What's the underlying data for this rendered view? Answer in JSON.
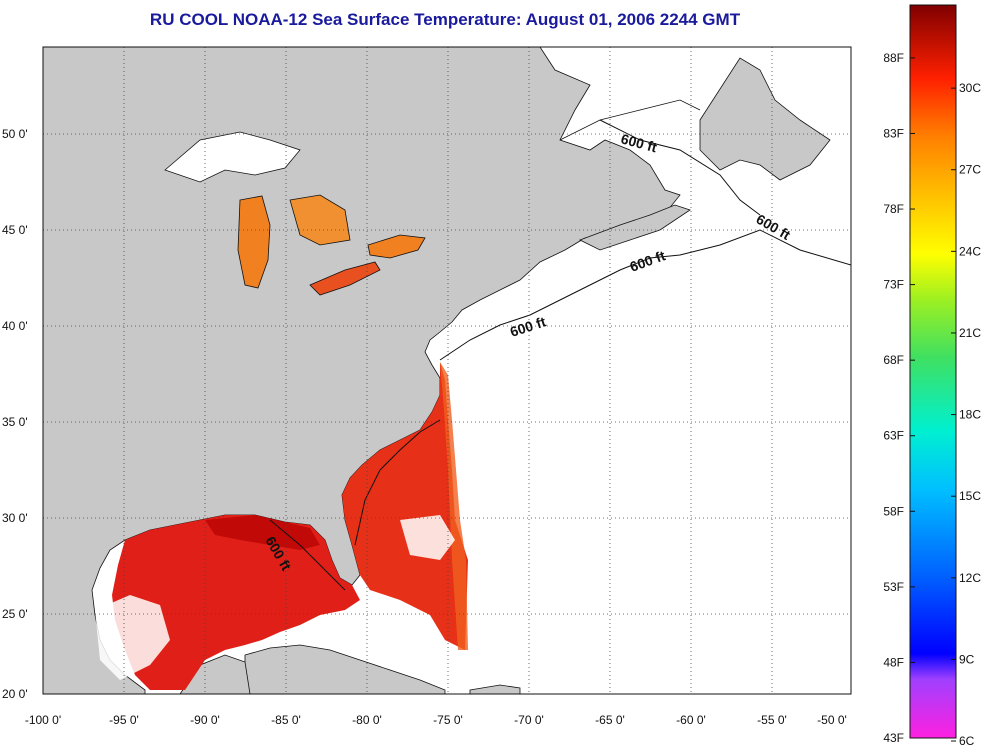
{
  "title": "RU COOL  NOAA-12  Sea Surface Temperature:  August 01, 2006 2244 GMT",
  "map": {
    "lon_labels": [
      "-100 0'",
      "-95 0'",
      "-90 0'",
      "-85 0'",
      "-80 0'",
      "-75 0'",
      "-70 0'",
      "-65 0'",
      "-60 0'",
      "-55 0'",
      "-50 0'"
    ],
    "lat_labels": [
      "50 0'",
      "45 0'",
      "40 0'",
      "35 0'",
      "30 0'",
      "25 0'",
      "20 0'"
    ],
    "lon_range": [
      -100,
      -50
    ],
    "lat_range": [
      20,
      52.5
    ],
    "isobath_labels": [
      "600 ft",
      "600 ft",
      "600 ft",
      "600 ft",
      "600 ft"
    ],
    "colors": {
      "land": "#c8c8c8",
      "no_data": "#ffffff",
      "sst_warm": "#e8201c",
      "sst_hot": "#b80000",
      "sst_orange": "#f08020"
    }
  },
  "colorbar": {
    "fahrenheit_labels": [
      "88F",
      "83F",
      "78F",
      "73F",
      "68F",
      "63F",
      "58F",
      "53F",
      "48F",
      "43F"
    ],
    "celsius_labels": [
      "30C",
      "27C",
      "24C",
      "21C",
      "18C",
      "15C",
      "12C",
      "9C",
      "6C"
    ],
    "f_values": [
      88,
      83,
      78,
      73,
      68,
      63,
      58,
      53,
      48,
      43
    ],
    "c_values": [
      30,
      27,
      24,
      21,
      18,
      15,
      12,
      9,
      6
    ]
  }
}
